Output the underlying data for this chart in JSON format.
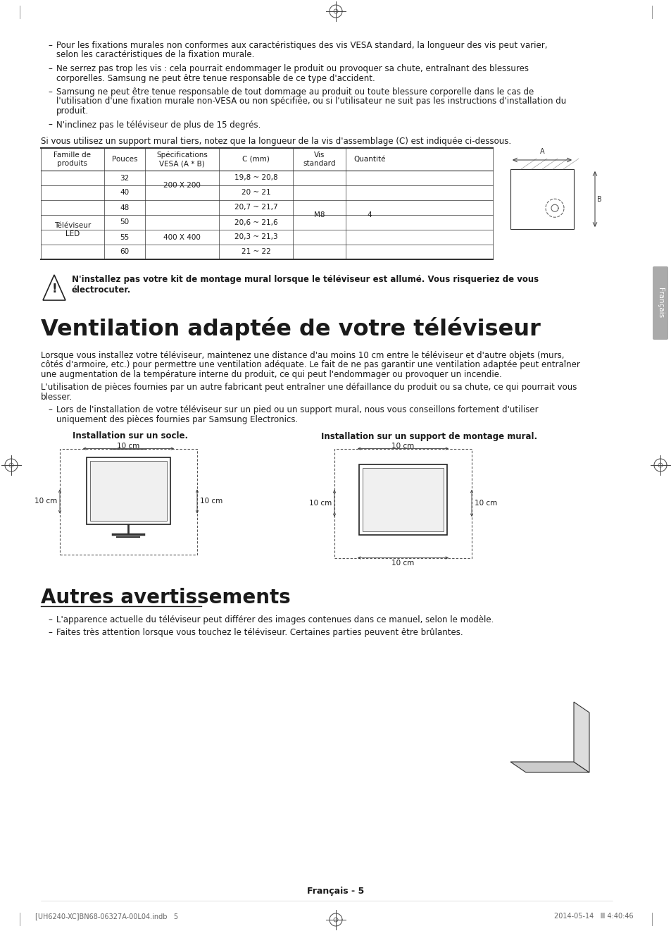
{
  "bg_color": "#ffffff",
  "text_color": "#1a1a1a",
  "section_title1": "Ventilation adaptée de votre téléviseur",
  "section_title2": "Autres avertissements",
  "bullet_points_top": [
    "Pour les fixations murales non conformes aux caractéristiques des vis VESA standard, la longueur des vis peut varier,\nselon les caractéristiques de la fixation murale.",
    "Ne serrez pas trop les vis : cela pourrait endommager le produit ou provoquer sa chute, entraînant des blessures\ncorporelles. Samsung ne peut être tenue responsable de ce type d'accident.",
    "Samsung ne peut être tenue responsable de tout dommage au produit ou toute blessure corporelle dans le cas de\nl'utilisation d'une fixation murale non-VESA ou non spécifiée, ou si l'utilisateur ne suit pas les instructions d'installation du\nproduit.",
    "N'inclinez pas le téléviseur de plus de 15 degrés."
  ],
  "table_intro": "Si vous utilisez un support mural tiers, notez que la longueur de la vis d'assemblage (C) est indiquée ci-dessous.",
  "table_headers": [
    "Famille de\nproduits",
    "Pouces",
    "Spécifications\nVESA (A * B)",
    "C (mm)",
    "Vis\nstandard",
    "Quantité"
  ],
  "table_rows": [
    [
      "",
      "32",
      "200 X 200",
      "19,8 ~ 20,8",
      "",
      ""
    ],
    [
      "",
      "40",
      "",
      "20 ~ 21",
      "",
      ""
    ],
    [
      "Téléviseur\nLED",
      "48",
      "",
      "20,7 ~ 21,7",
      "M8",
      "4"
    ],
    [
      "",
      "50",
      "400 X 400",
      "20,6 ~ 21,6",
      "",
      ""
    ],
    [
      "",
      "55",
      "",
      "20,3 ~ 21,3",
      "",
      ""
    ],
    [
      "",
      "60",
      "",
      "21 ~ 22",
      "",
      ""
    ]
  ],
  "warning_text": "N'installez pas votre kit de montage mural lorsque le téléviseur est allumé. Vous risqueriez de vous\nélectrocuter.",
  "ventilation_para1": "Lorsque vous installez votre téléviseur, maintenez une distance d'au moins 10 cm entre le téléviseur et d'autre objets (murs,\ncôtés d'armoire, etc.) pour permettre une ventilation adéquate. Le fait de ne pas garantir une ventilation adaptée peut entraîner\nune augmentation de la température interne du produit, ce qui peut l'endommager ou provoquer un incendie.",
  "ventilation_para2": "L'utilisation de pièces fournies par un autre fabricant peut entraîner une défaillance du produit ou sa chute, ce qui pourrait vous\nblesser.",
  "ventilation_bullet": "Lors de l'installation de votre téléviseur sur un pied ou un support mural, nous vous conseillons fortement d'utiliser\nuniquement des pièces fournies par Samsung Electronics.",
  "install_label1": "Installation sur un socle.",
  "install_label2": "Installation sur un support de montage mural.",
  "autres_bullet1": "L'apparence actuelle du téléviseur peut différer des images contenues dans ce manuel, selon le modèle.",
  "autres_bullet2": "Faites très attention lorsque vous touchez le téléviseur. Certaines parties peuvent être brûlantes.",
  "footer_text": "Français - 5",
  "footer_left": "[UH6240-XC]BN68-06327A-00L04.indb   5",
  "footer_right": "2014-05-14   Ⅲ 4:40:46",
  "side_label": "Français"
}
